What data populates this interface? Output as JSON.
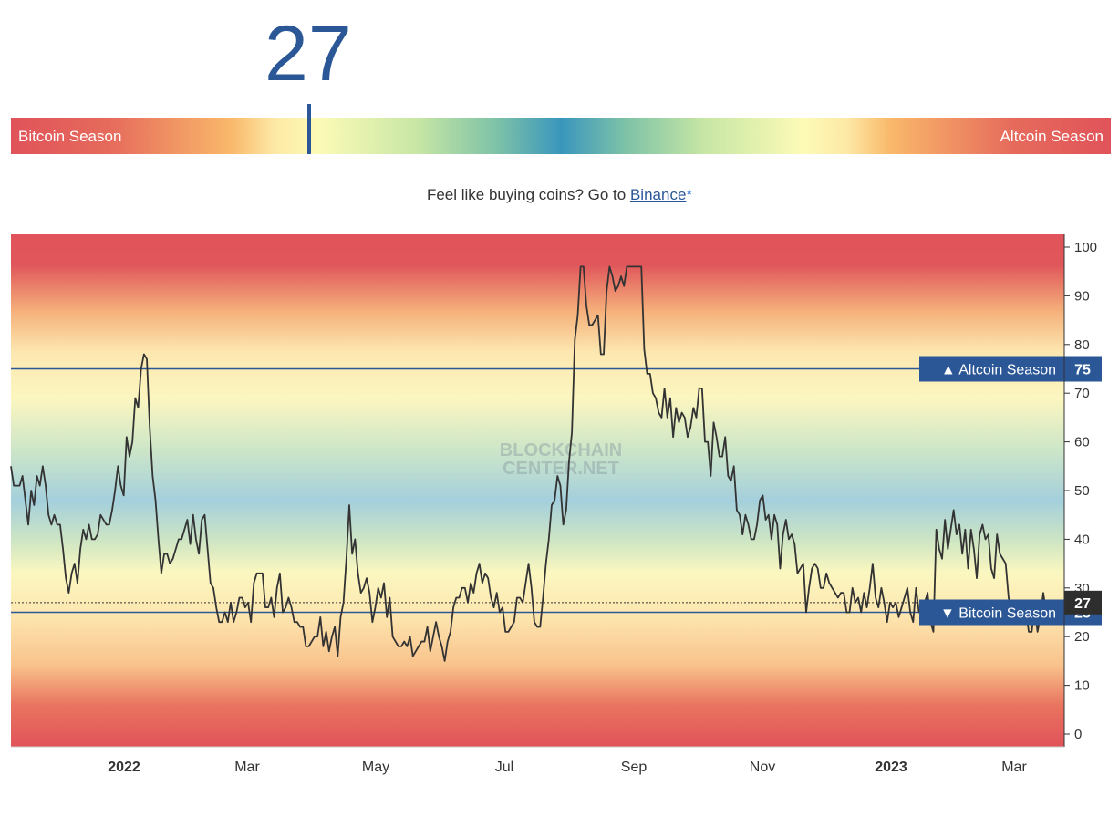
{
  "index_value": "27",
  "scale": {
    "left_label": "Bitcoin Season",
    "right_label": "Altcoin Season",
    "value": 27
  },
  "promo": {
    "text": "Feel like buying coins? Go to ",
    "link_label": "Binance",
    "asterisk": "*"
  },
  "watermark": [
    "BLOCKCHAIN",
    "CENTER.NET"
  ],
  "colors": {
    "accent": "#2b5797",
    "red": "#e0535a",
    "orange": "#f9b86a",
    "yellow": "#fcfbb6",
    "blue": "#3a96bd",
    "line": "#333333"
  },
  "chart_data": {
    "type": "line",
    "ylim": [
      0,
      100
    ],
    "yticks": [
      0,
      10,
      20,
      30,
      40,
      50,
      60,
      70,
      80,
      90,
      100
    ],
    "xticks": [
      {
        "label": "2022",
        "bold": true
      },
      {
        "label": "Mar",
        "bold": false
      },
      {
        "label": "May",
        "bold": false
      },
      {
        "label": "Jul",
        "bold": false
      },
      {
        "label": "Sep",
        "bold": false
      },
      {
        "label": "Nov",
        "bold": false
      },
      {
        "label": "2023",
        "bold": true
      },
      {
        "label": "Mar",
        "bold": false
      }
    ],
    "thresholds": [
      {
        "label": "▲ Altcoin Season",
        "value": 75
      },
      {
        "label": "▼ Bitcoin Season",
        "value": 25
      }
    ],
    "current": 27,
    "series": [
      {
        "values": [
          55,
          51,
          51,
          51,
          53,
          48,
          43,
          50,
          47,
          53,
          51,
          55,
          51,
          45,
          43,
          45,
          43,
          43,
          38,
          32,
          29,
          33,
          35,
          31,
          38,
          42,
          40,
          43,
          40,
          40,
          41,
          45,
          44,
          43,
          43,
          46,
          50,
          55,
          51,
          49,
          61,
          57,
          60,
          69,
          67,
          75,
          78,
          77,
          63,
          53,
          48,
          40,
          33,
          37,
          37,
          35,
          36,
          38,
          40,
          40,
          42,
          44,
          39,
          45,
          40,
          37,
          44,
          45,
          38,
          31,
          30,
          26,
          23,
          23,
          25,
          23,
          27,
          23,
          25,
          28,
          28,
          26,
          27,
          23,
          31,
          33,
          33,
          33,
          26,
          26,
          28,
          24,
          30,
          33,
          25,
          26,
          28,
          26,
          23,
          23,
          22,
          22,
          18,
          18,
          19,
          20,
          20,
          24,
          18,
          21,
          17,
          20,
          22,
          16,
          24,
          27,
          36,
          47,
          37,
          40,
          33,
          29,
          30,
          32,
          29,
          23,
          26,
          30,
          28,
          31,
          24,
          28,
          20,
          19,
          18,
          18,
          19,
          18,
          20,
          16,
          17,
          18,
          19,
          19,
          22,
          17,
          20,
          23,
          20,
          18,
          15,
          19,
          21,
          26,
          28,
          28,
          30,
          30,
          27,
          31,
          29,
          33,
          35,
          31,
          33,
          32,
          28,
          26,
          29,
          25,
          26,
          21,
          21,
          22,
          23,
          28,
          28,
          27,
          31,
          35,
          30,
          23,
          22,
          22,
          28,
          35,
          40,
          47,
          48,
          53,
          51,
          43,
          46,
          56,
          62,
          81,
          86,
          96,
          96,
          88,
          84,
          84,
          85,
          86,
          78,
          78,
          91,
          96,
          94,
          91,
          92,
          94,
          92,
          96,
          96,
          96,
          96,
          96,
          96,
          79,
          74,
          74,
          70,
          69,
          66,
          65,
          71,
          65,
          69,
          61,
          67,
          64,
          66,
          65,
          61,
          63,
          67,
          65,
          71,
          71,
          60,
          60,
          53,
          64,
          61,
          57,
          57,
          61,
          53,
          52,
          55,
          46,
          45,
          41,
          45,
          43,
          40,
          40,
          43,
          48,
          49,
          44,
          45,
          40,
          45,
          43,
          34,
          41,
          44,
          40,
          41,
          39,
          33,
          34,
          35,
          25,
          30,
          34,
          35,
          34,
          30,
          30,
          33,
          31,
          30,
          29,
          28,
          29,
          29,
          25,
          25,
          30,
          27,
          28,
          25,
          29,
          26,
          30,
          35,
          28,
          26,
          30,
          27,
          23,
          27,
          26,
          27,
          24,
          26,
          28,
          30,
          25,
          23,
          30,
          25,
          27,
          27,
          29,
          23,
          21,
          42,
          38,
          36,
          44,
          38,
          42,
          46,
          41,
          43,
          37,
          42,
          34,
          42,
          38,
          32,
          41,
          43,
          40,
          41,
          34,
          32,
          41,
          37,
          36,
          35,
          28,
          25,
          26,
          27,
          27,
          24,
          25,
          21,
          21,
          26,
          21,
          24,
          29,
          25,
          27,
          27,
          27,
          27,
          27
        ]
      }
    ]
  }
}
